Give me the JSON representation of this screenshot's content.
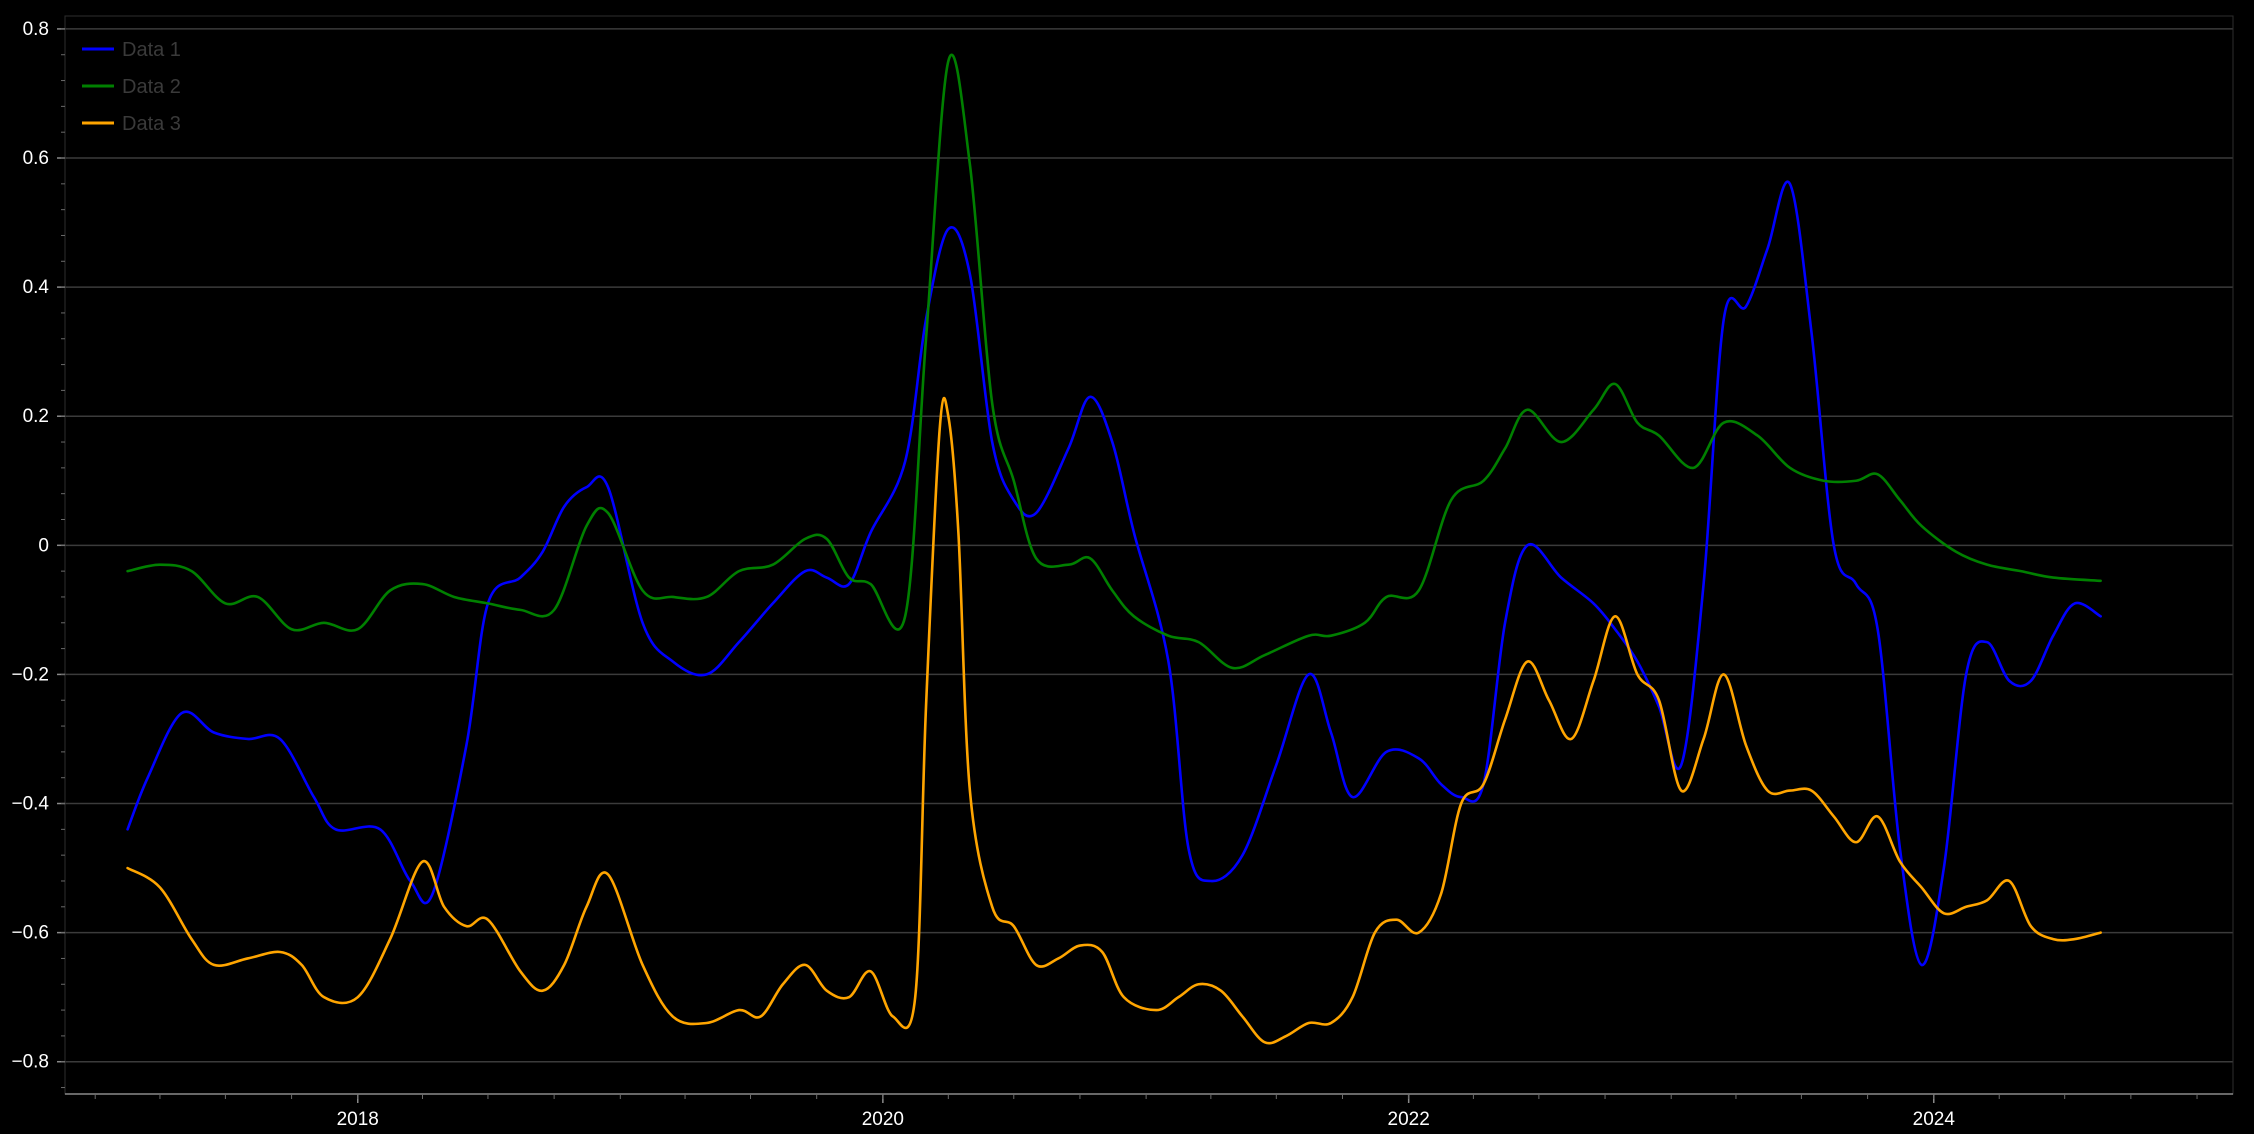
{
  "chart_data": {
    "type": "line",
    "title": "",
    "xlabel": "",
    "ylabel": "",
    "x_type": "date",
    "xlim": [
      "2016-11-20",
      "2025-02-20"
    ],
    "ylim": [
      -0.85,
      0.82
    ],
    "x_ticks": [
      "2018-01-01",
      "2020-01-01",
      "2022-01-01",
      "2024-01-01"
    ],
    "x_tick_labels": [
      "2018",
      "2020",
      "2022",
      "2024"
    ],
    "y_ticks": [
      -0.8,
      -0.6,
      -0.4,
      -0.2,
      0,
      0.2,
      0.4,
      0.6,
      0.8
    ],
    "y_tick_labels": [
      "−0.8",
      "−0.6",
      "−0.4",
      "−0.2",
      "0",
      "0.2",
      "0.4",
      "0.6",
      "0.8"
    ],
    "grid": "horizontal",
    "legend_position": "top-left",
    "series": [
      {
        "name": "Data 1",
        "color": "#0000ff",
        "points": [
          [
            "2017-02-15",
            -0.44
          ],
          [
            "2017-03-15",
            -0.36
          ],
          [
            "2017-05-01",
            -0.26
          ],
          [
            "2017-06-15",
            -0.29
          ],
          [
            "2017-08-01",
            -0.3
          ],
          [
            "2017-09-15",
            -0.3
          ],
          [
            "2017-11-01",
            -0.39
          ],
          [
            "2017-12-01",
            -0.44
          ],
          [
            "2018-02-01",
            -0.44
          ],
          [
            "2018-03-15",
            -0.52
          ],
          [
            "2018-04-15",
            -0.54
          ],
          [
            "2018-06-01",
            -0.31
          ],
          [
            "2018-07-01",
            -0.09
          ],
          [
            "2018-08-15",
            -0.05
          ],
          [
            "2018-09-15",
            -0.01
          ],
          [
            "2018-10-15",
            0.06
          ],
          [
            "2018-11-15",
            0.09
          ],
          [
            "2018-12-15",
            0.09
          ],
          [
            "2019-02-01",
            -0.12
          ],
          [
            "2019-03-15",
            -0.18
          ],
          [
            "2019-05-01",
            -0.2
          ],
          [
            "2019-06-15",
            -0.15
          ],
          [
            "2019-08-01",
            -0.09
          ],
          [
            "2019-09-15",
            -0.04
          ],
          [
            "2019-10-15",
            -0.05
          ],
          [
            "2019-11-15",
            -0.06
          ],
          [
            "2019-12-15",
            0.02
          ],
          [
            "2020-02-01",
            0.13
          ],
          [
            "2020-03-01",
            0.35
          ],
          [
            "2020-04-01",
            0.49
          ],
          [
            "2020-05-01",
            0.42
          ],
          [
            "2020-06-01",
            0.16
          ],
          [
            "2020-07-01",
            0.07
          ],
          [
            "2020-08-01",
            0.05
          ],
          [
            "2020-09-15",
            0.15
          ],
          [
            "2020-10-15",
            0.23
          ],
          [
            "2020-11-15",
            0.16
          ],
          [
            "2020-12-15",
            0.02
          ],
          [
            "2021-02-01",
            -0.18
          ],
          [
            "2021-03-01",
            -0.47
          ],
          [
            "2021-04-01",
            -0.52
          ],
          [
            "2021-05-15",
            -0.48
          ],
          [
            "2021-07-01",
            -0.34
          ],
          [
            "2021-08-15",
            -0.2
          ],
          [
            "2021-09-15",
            -0.29
          ],
          [
            "2021-10-15",
            -0.39
          ],
          [
            "2021-12-01",
            -0.32
          ],
          [
            "2022-01-15",
            -0.33
          ],
          [
            "2022-02-15",
            -0.37
          ],
          [
            "2022-03-15",
            -0.39
          ],
          [
            "2022-04-15",
            -0.37
          ],
          [
            "2022-05-15",
            -0.12
          ],
          [
            "2022-06-15",
            0.0
          ],
          [
            "2022-08-01",
            -0.05
          ],
          [
            "2022-09-15",
            -0.09
          ],
          [
            "2022-10-15",
            -0.13
          ],
          [
            "2022-11-15",
            -0.18
          ],
          [
            "2022-12-15",
            -0.25
          ],
          [
            "2023-01-15",
            -0.34
          ],
          [
            "2023-02-15",
            -0.06
          ],
          [
            "2023-03-15",
            0.35
          ],
          [
            "2023-04-15",
            0.37
          ],
          [
            "2023-05-15",
            0.46
          ],
          [
            "2023-06-15",
            0.56
          ],
          [
            "2023-07-15",
            0.33
          ],
          [
            "2023-08-15",
            0.0
          ],
          [
            "2023-09-15",
            -0.06
          ],
          [
            "2023-10-15",
            -0.13
          ],
          [
            "2023-11-15",
            -0.47
          ],
          [
            "2023-12-15",
            -0.65
          ],
          [
            "2024-01-15",
            -0.5
          ],
          [
            "2024-02-15",
            -0.2
          ],
          [
            "2024-03-15",
            -0.15
          ],
          [
            "2024-04-15",
            -0.21
          ],
          [
            "2024-05-15",
            -0.21
          ],
          [
            "2024-06-15",
            -0.14
          ],
          [
            "2024-07-15",
            -0.09
          ],
          [
            "2024-08-20",
            -0.11
          ]
        ]
      },
      {
        "name": "Data 2",
        "color": "#008000",
        "points": [
          [
            "2017-02-15",
            -0.04
          ],
          [
            "2017-04-01",
            -0.03
          ],
          [
            "2017-05-15",
            -0.04
          ],
          [
            "2017-07-01",
            -0.09
          ],
          [
            "2017-08-15",
            -0.08
          ],
          [
            "2017-10-01",
            -0.13
          ],
          [
            "2017-11-15",
            -0.12
          ],
          [
            "2018-01-01",
            -0.13
          ],
          [
            "2018-02-15",
            -0.07
          ],
          [
            "2018-04-01",
            -0.06
          ],
          [
            "2018-05-15",
            -0.08
          ],
          [
            "2018-07-01",
            -0.09
          ],
          [
            "2018-08-15",
            -0.1
          ],
          [
            "2018-10-01",
            -0.1
          ],
          [
            "2018-11-15",
            0.03
          ],
          [
            "2018-12-15",
            0.05
          ],
          [
            "2019-02-01",
            -0.07
          ],
          [
            "2019-03-15",
            -0.08
          ],
          [
            "2019-05-01",
            -0.08
          ],
          [
            "2019-06-15",
            -0.04
          ],
          [
            "2019-08-01",
            -0.03
          ],
          [
            "2019-09-15",
            0.01
          ],
          [
            "2019-10-15",
            0.01
          ],
          [
            "2019-11-15",
            -0.05
          ],
          [
            "2019-12-15",
            -0.06
          ],
          [
            "2020-02-01",
            -0.11
          ],
          [
            "2020-03-01",
            0.32
          ],
          [
            "2020-04-01",
            0.75
          ],
          [
            "2020-05-01",
            0.59
          ],
          [
            "2020-06-01",
            0.22
          ],
          [
            "2020-07-01",
            0.1
          ],
          [
            "2020-08-01",
            -0.02
          ],
          [
            "2020-09-15",
            -0.03
          ],
          [
            "2020-10-15",
            -0.02
          ],
          [
            "2020-11-15",
            -0.07
          ],
          [
            "2020-12-15",
            -0.11
          ],
          [
            "2021-02-01",
            -0.14
          ],
          [
            "2021-03-15",
            -0.15
          ],
          [
            "2021-05-01",
            -0.19
          ],
          [
            "2021-06-15",
            -0.17
          ],
          [
            "2021-08-15",
            -0.14
          ],
          [
            "2021-09-15",
            -0.14
          ],
          [
            "2021-11-01",
            -0.12
          ],
          [
            "2021-12-01",
            -0.08
          ],
          [
            "2022-01-15",
            -0.07
          ],
          [
            "2022-03-01",
            0.07
          ],
          [
            "2022-04-15",
            0.1
          ],
          [
            "2022-05-15",
            0.15
          ],
          [
            "2022-06-15",
            0.21
          ],
          [
            "2022-08-01",
            0.16
          ],
          [
            "2022-09-15",
            0.21
          ],
          [
            "2022-10-15",
            0.25
          ],
          [
            "2022-11-15",
            0.19
          ],
          [
            "2022-12-15",
            0.17
          ],
          [
            "2023-02-01",
            0.12
          ],
          [
            "2023-03-15",
            0.19
          ],
          [
            "2023-05-01",
            0.17
          ],
          [
            "2023-06-15",
            0.12
          ],
          [
            "2023-08-01",
            0.1
          ],
          [
            "2023-09-15",
            0.1
          ],
          [
            "2023-10-15",
            0.11
          ],
          [
            "2023-11-15",
            0.07
          ],
          [
            "2023-12-15",
            0.03
          ],
          [
            "2024-02-01",
            -0.01
          ],
          [
            "2024-03-15",
            -0.03
          ],
          [
            "2024-05-01",
            -0.04
          ],
          [
            "2024-06-15",
            -0.05
          ],
          [
            "2024-08-20",
            -0.055
          ]
        ]
      },
      {
        "name": "Data 3",
        "color": "#ffa500",
        "points": [
          [
            "2017-02-15",
            -0.5
          ],
          [
            "2017-04-01",
            -0.53
          ],
          [
            "2017-05-15",
            -0.61
          ],
          [
            "2017-06-15",
            -0.65
          ],
          [
            "2017-08-01",
            -0.64
          ],
          [
            "2017-09-15",
            -0.63
          ],
          [
            "2017-10-15",
            -0.65
          ],
          [
            "2017-11-15",
            -0.7
          ],
          [
            "2018-01-01",
            -0.7
          ],
          [
            "2018-02-15",
            -0.61
          ],
          [
            "2018-04-01",
            -0.49
          ],
          [
            "2018-05-01",
            -0.56
          ],
          [
            "2018-06-01",
            -0.59
          ],
          [
            "2018-07-01",
            -0.58
          ],
          [
            "2018-08-15",
            -0.66
          ],
          [
            "2018-09-15",
            -0.69
          ],
          [
            "2018-10-15",
            -0.65
          ],
          [
            "2018-11-15",
            -0.56
          ],
          [
            "2018-12-15",
            -0.51
          ],
          [
            "2019-02-01",
            -0.65
          ],
          [
            "2019-03-15",
            -0.73
          ],
          [
            "2019-05-01",
            -0.74
          ],
          [
            "2019-06-15",
            -0.72
          ],
          [
            "2019-07-15",
            -0.73
          ],
          [
            "2019-08-15",
            -0.68
          ],
          [
            "2019-09-15",
            -0.65
          ],
          [
            "2019-10-15",
            -0.69
          ],
          [
            "2019-11-15",
            -0.7
          ],
          [
            "2019-12-15",
            -0.66
          ],
          [
            "2020-01-15",
            -0.73
          ],
          [
            "2020-02-15",
            -0.7
          ],
          [
            "2020-03-01",
            -0.25
          ],
          [
            "2020-03-20",
            0.18
          ],
          [
            "2020-04-01",
            0.2
          ],
          [
            "2020-04-15",
            0.02
          ],
          [
            "2020-05-01",
            -0.38
          ],
          [
            "2020-06-01",
            -0.56
          ],
          [
            "2020-07-01",
            -0.59
          ],
          [
            "2020-08-01",
            -0.65
          ],
          [
            "2020-09-01",
            -0.64
          ],
          [
            "2020-10-01",
            -0.62
          ],
          [
            "2020-11-01",
            -0.63
          ],
          [
            "2020-12-01",
            -0.7
          ],
          [
            "2021-01-15",
            -0.72
          ],
          [
            "2021-02-15",
            -0.7
          ],
          [
            "2021-03-15",
            -0.68
          ],
          [
            "2021-04-15",
            -0.69
          ],
          [
            "2021-05-15",
            -0.73
          ],
          [
            "2021-06-15",
            -0.77
          ],
          [
            "2021-07-15",
            -0.76
          ],
          [
            "2021-08-15",
            -0.74
          ],
          [
            "2021-09-15",
            -0.74
          ],
          [
            "2021-10-15",
            -0.7
          ],
          [
            "2021-11-15",
            -0.6
          ],
          [
            "2021-12-15",
            -0.58
          ],
          [
            "2022-01-15",
            -0.6
          ],
          [
            "2022-02-15",
            -0.54
          ],
          [
            "2022-03-15",
            -0.4
          ],
          [
            "2022-04-15",
            -0.37
          ],
          [
            "2022-05-15",
            -0.27
          ],
          [
            "2022-06-15",
            -0.18
          ],
          [
            "2022-07-15",
            -0.24
          ],
          [
            "2022-08-15",
            -0.3
          ],
          [
            "2022-09-15",
            -0.21
          ],
          [
            "2022-10-15",
            -0.11
          ],
          [
            "2022-11-15",
            -0.2
          ],
          [
            "2022-12-15",
            -0.24
          ],
          [
            "2023-01-15",
            -0.38
          ],
          [
            "2023-02-15",
            -0.3
          ],
          [
            "2023-03-15",
            -0.2
          ],
          [
            "2023-04-15",
            -0.31
          ],
          [
            "2023-05-15",
            -0.38
          ],
          [
            "2023-06-15",
            -0.38
          ],
          [
            "2023-07-15",
            -0.38
          ],
          [
            "2023-08-15",
            -0.42
          ],
          [
            "2023-09-15",
            -0.46
          ],
          [
            "2023-10-15",
            -0.42
          ],
          [
            "2023-11-15",
            -0.49
          ],
          [
            "2023-12-15",
            -0.53
          ],
          [
            "2024-01-15",
            -0.57
          ],
          [
            "2024-02-15",
            -0.56
          ],
          [
            "2024-03-15",
            -0.55
          ],
          [
            "2024-04-15",
            -0.52
          ],
          [
            "2024-05-15",
            -0.59
          ],
          [
            "2024-06-15",
            -0.61
          ],
          [
            "2024-07-15",
            -0.61
          ],
          [
            "2024-08-20",
            -0.6
          ]
        ]
      }
    ]
  }
}
